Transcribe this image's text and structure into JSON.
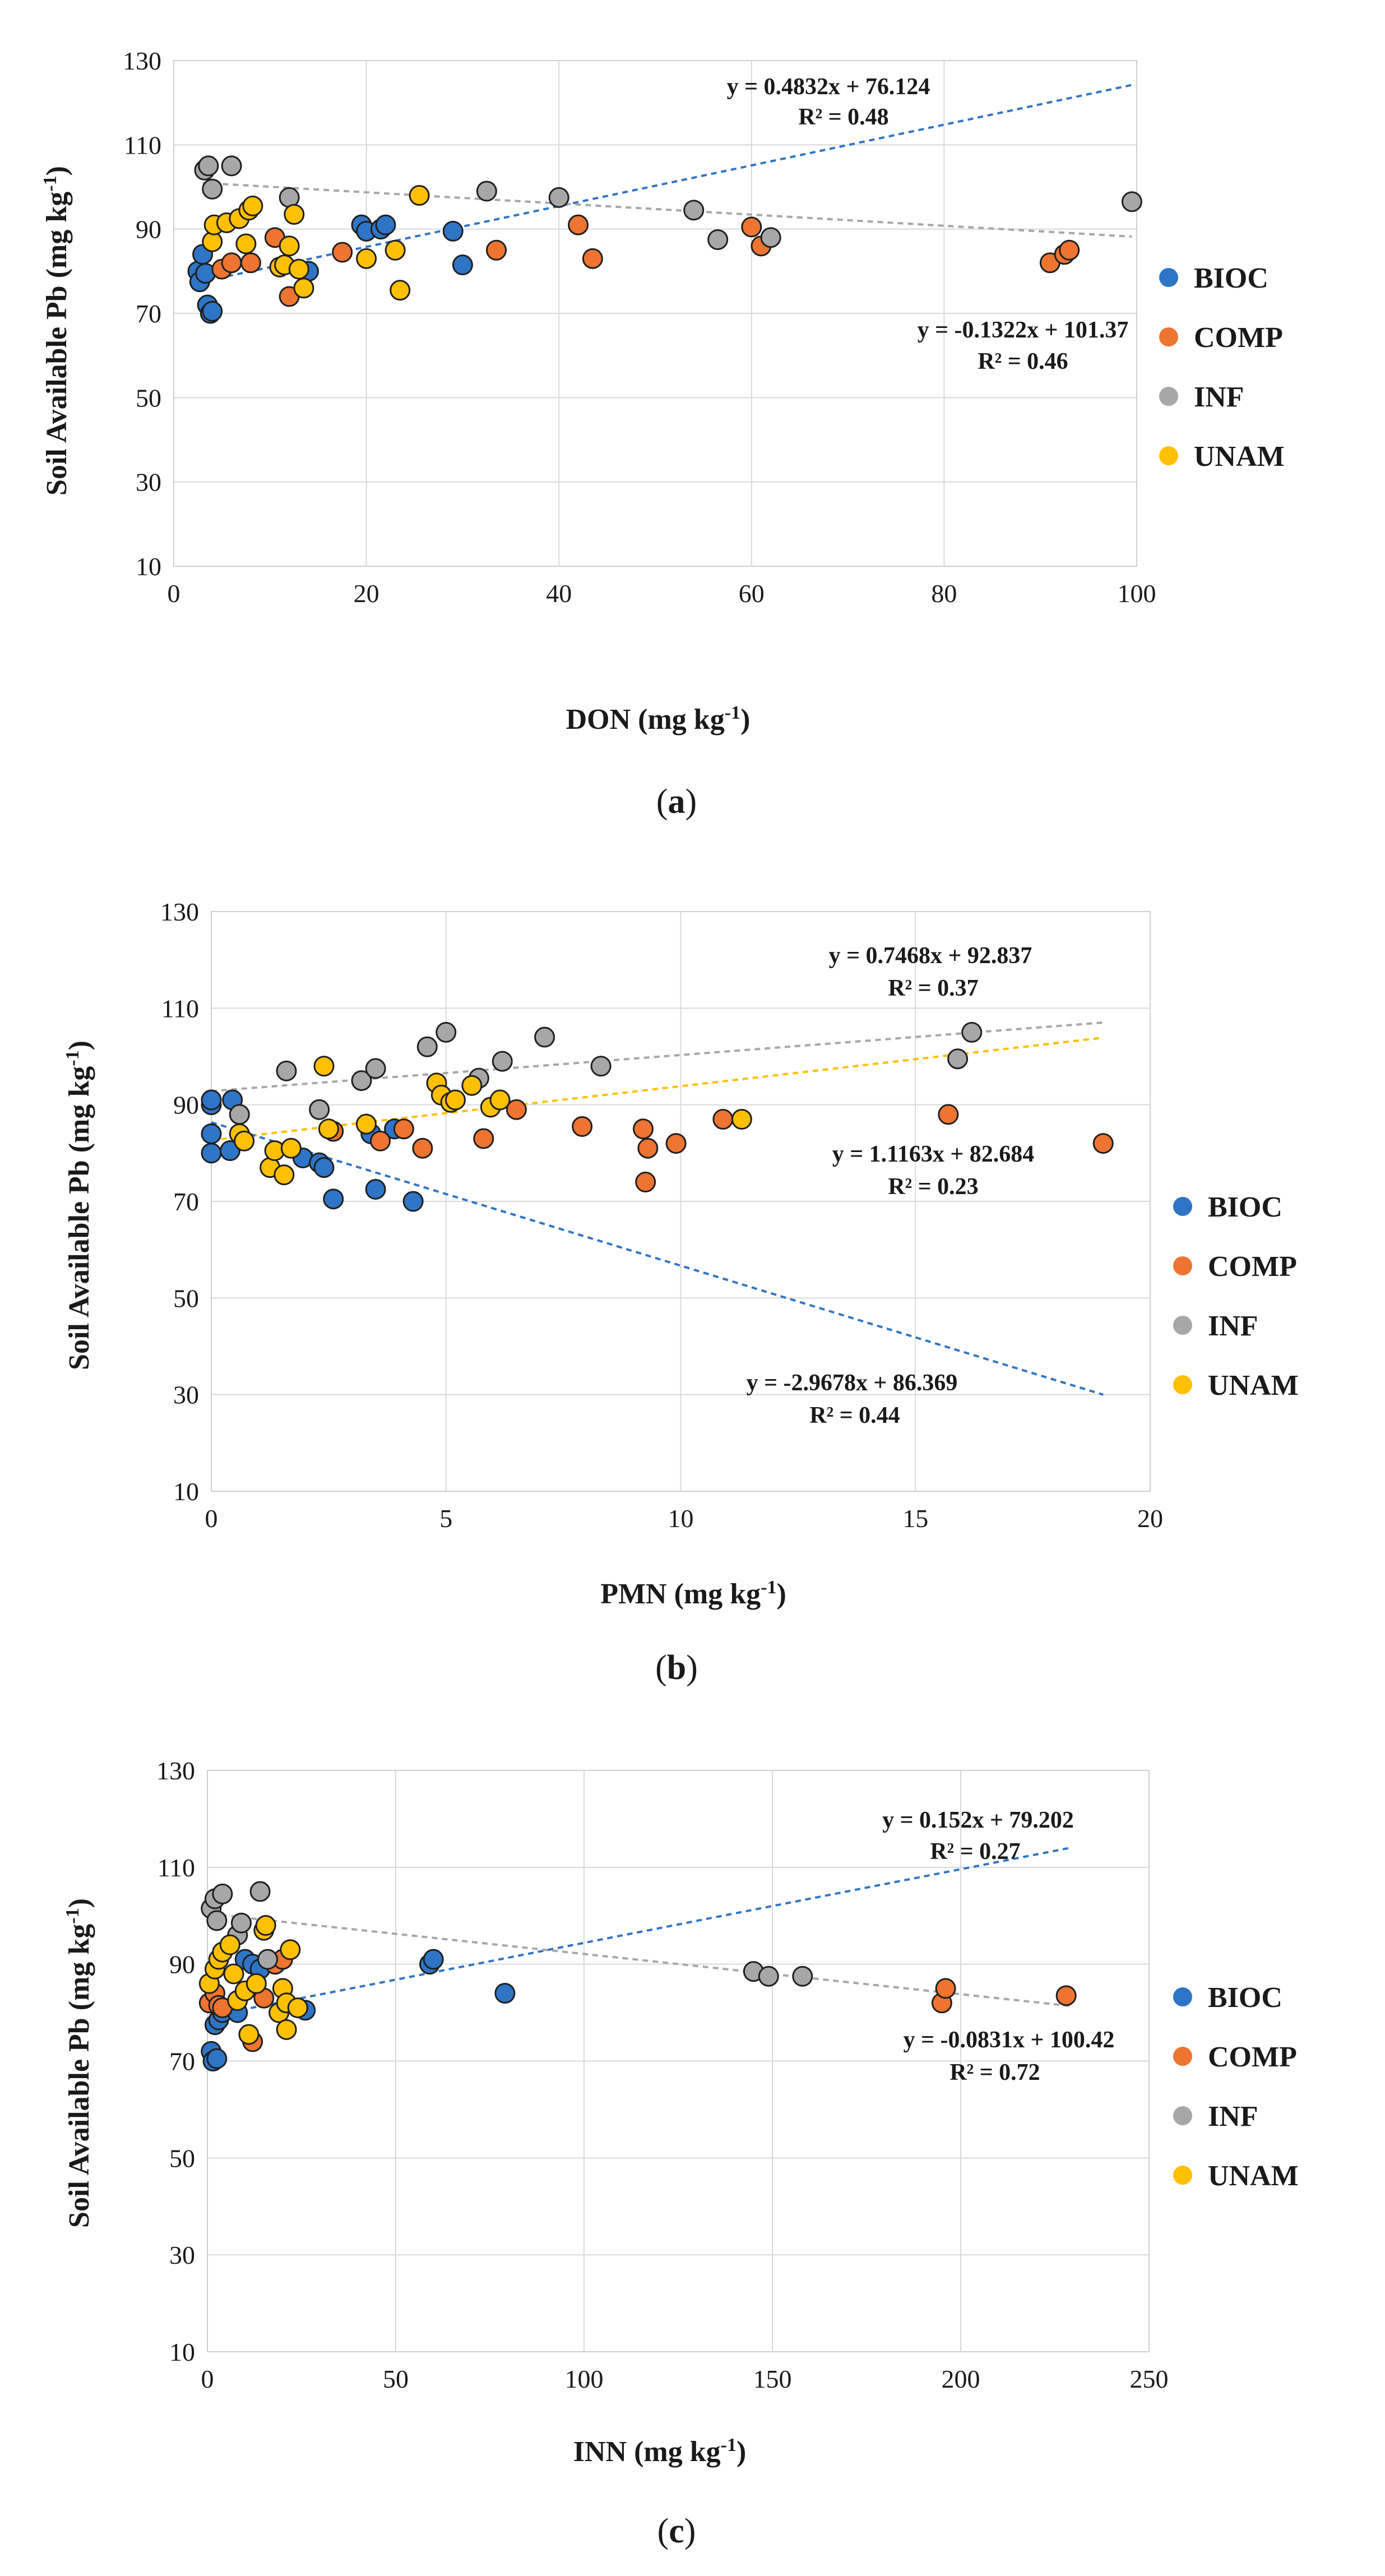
{
  "series_colors": {
    "BIOC": "#2e75c6",
    "COMP": "#ee7431",
    "INF": "#a7a7a7",
    "UNAM": "#ffc000"
  },
  "chart_data": [
    {
      "type": "scatter",
      "caption_label": "a",
      "title": "",
      "xlabel": "DON",
      "xlabel_unit": "(mg kg",
      "xlabel_sup": "-1",
      "ylabel": "Soil Available Pb",
      "ylabel_unit": "(mg kg",
      "ylabel_sup": "-1",
      "xlim": [
        0,
        100
      ],
      "ylim": [
        10,
        130
      ],
      "xticks": [
        0,
        20,
        40,
        60,
        80,
        100
      ],
      "yticks": [
        10,
        30,
        50,
        70,
        90,
        110,
        130
      ],
      "grid": true,
      "legend": [
        "BIOC",
        "COMP",
        "INF",
        "UNAM"
      ],
      "legend_position": "right",
      "series": [
        {
          "name": "BIOC",
          "points": [
            [
              2.5,
              80
            ],
            [
              2.7,
              77.5
            ],
            [
              3,
              84
            ],
            [
              3.3,
              79.5
            ],
            [
              3.5,
              72
            ],
            [
              3.8,
              70
            ],
            [
              4,
              70.5
            ],
            [
              14,
              80
            ],
            [
              19.5,
              91
            ],
            [
              20,
              89.5
            ],
            [
              21.5,
              90
            ],
            [
              22,
              91
            ],
            [
              29,
              89.5
            ],
            [
              30,
              81.5
            ]
          ]
        },
        {
          "name": "COMP",
          "points": [
            [
              5,
              80.5
            ],
            [
              6,
              82
            ],
            [
              8,
              82
            ],
            [
              10.5,
              88
            ],
            [
              12,
              74
            ],
            [
              17.5,
              84.5
            ],
            [
              33.5,
              85
            ],
            [
              42,
              91
            ],
            [
              43.5,
              83
            ],
            [
              60,
              90.5
            ],
            [
              61,
              86
            ],
            [
              91,
              82
            ],
            [
              92.5,
              84
            ],
            [
              93,
              85
            ]
          ]
        },
        {
          "name": "INF",
          "points": [
            [
              3.2,
              104
            ],
            [
              3.6,
              105
            ],
            [
              4,
              99.5
            ],
            [
              6,
              105
            ],
            [
              12,
              97.5
            ],
            [
              32.5,
              99
            ],
            [
              40,
              97.5
            ],
            [
              54,
              94.5
            ],
            [
              56.5,
              87.5
            ],
            [
              62,
              88
            ],
            [
              99.5,
              96.5
            ]
          ]
        },
        {
          "name": "UNAM",
          "points": [
            [
              4,
              87
            ],
            [
              4.2,
              91
            ],
            [
              5.5,
              91.5
            ],
            [
              6.8,
              92.5
            ],
            [
              7.5,
              86.5
            ],
            [
              7.8,
              94.5
            ],
            [
              8.2,
              95.5
            ],
            [
              11,
              81
            ],
            [
              11.5,
              81.5
            ],
            [
              12,
              86
            ],
            [
              12.5,
              93.5
            ],
            [
              13,
              80.5
            ],
            [
              13.5,
              76
            ],
            [
              20,
              83
            ],
            [
              23,
              85
            ],
            [
              23.5,
              75.5
            ],
            [
              25.5,
              98
            ]
          ]
        }
      ],
      "trendlines": [
        {
          "series": "BIOC",
          "x_range": [
            2.5,
            99.5
          ],
          "slope": 0.4832,
          "intercept": 76.124,
          "equation": "y = 0.4832x + 76.124",
          "r2": "R² = 0.48"
        },
        {
          "series": "INF",
          "x_range": [
            3,
            99.5
          ],
          "slope": -0.1322,
          "intercept": 101.37,
          "equation": "y = -0.1322x + 101.37",
          "r2": "R² = 0.46"
        }
      ]
    },
    {
      "type": "scatter",
      "caption_label": "b",
      "title": "",
      "xlabel": "PMN",
      "xlabel_unit": "(mg kg",
      "xlabel_sup": "-1",
      "ylabel": "Soil Available Pb",
      "ylabel_unit": "(mg kg",
      "ylabel_sup": "-1",
      "xlim": [
        0,
        20
      ],
      "ylim": [
        10,
        130
      ],
      "xticks": [
        0,
        5,
        10,
        15,
        20
      ],
      "yticks": [
        10,
        30,
        50,
        70,
        90,
        110,
        130
      ],
      "grid": true,
      "legend": [
        "BIOC",
        "COMP",
        "INF",
        "UNAM"
      ],
      "legend_position": "right",
      "series": [
        {
          "name": "BIOC",
          "points": [
            [
              0,
              84
            ],
            [
              0,
              90
            ],
            [
              0,
              91
            ],
            [
              0,
              80
            ],
            [
              0.45,
              91
            ],
            [
              0.4,
              80.5
            ],
            [
              1.95,
              79
            ],
            [
              2.3,
              78
            ],
            [
              2.4,
              77
            ],
            [
              2.6,
              70.5
            ],
            [
              3.5,
              72.5
            ],
            [
              3.4,
              84
            ],
            [
              3.9,
              85
            ],
            [
              4.3,
              70
            ]
          ]
        },
        {
          "name": "COMP",
          "points": [
            [
              2.6,
              84.5
            ],
            [
              3.6,
              82.5
            ],
            [
              4.1,
              85
            ],
            [
              4.5,
              81
            ],
            [
              5.8,
              83
            ],
            [
              6.5,
              89
            ],
            [
              7.9,
              85.5
            ],
            [
              9.2,
              85
            ],
            [
              9.25,
              74
            ],
            [
              9.3,
              81
            ],
            [
              9.9,
              82
            ],
            [
              10.9,
              87
            ],
            [
              15.7,
              88
            ],
            [
              19,
              82
            ]
          ]
        },
        {
          "name": "INF",
          "points": [
            [
              0.6,
              88
            ],
            [
              1.6,
              97
            ],
            [
              2.3,
              89
            ],
            [
              3.2,
              95
            ],
            [
              3.5,
              97.5
            ],
            [
              4.6,
              102
            ],
            [
              5,
              105
            ],
            [
              5.7,
              95.5
            ],
            [
              6.2,
              99
            ],
            [
              7.1,
              104
            ],
            [
              8.3,
              98
            ],
            [
              15.9,
              99.5
            ],
            [
              16.2,
              105
            ]
          ]
        },
        {
          "name": "UNAM",
          "points": [
            [
              0.6,
              84
            ],
            [
              0.7,
              82.5
            ],
            [
              1.25,
              77
            ],
            [
              1.35,
              80.5
            ],
            [
              1.55,
              75.5
            ],
            [
              1.7,
              81
            ],
            [
              2.4,
              98
            ],
            [
              2.5,
              85
            ],
            [
              3.3,
              86
            ],
            [
              4.8,
              94.5
            ],
            [
              4.9,
              92
            ],
            [
              5.1,
              90.5
            ],
            [
              5.2,
              91
            ],
            [
              5.55,
              94
            ],
            [
              5.95,
              89.5
            ],
            [
              6.15,
              91
            ],
            [
              11.3,
              87
            ]
          ]
        }
      ],
      "trendlines": [
        {
          "series": "INF",
          "x_range": [
            0,
            19
          ],
          "slope": 0.7468,
          "intercept": 92.837,
          "equation": "y = 0.7468x + 92.837",
          "r2": "R² = 0.37"
        },
        {
          "series": "UNAM",
          "x_range": [
            0,
            19
          ],
          "slope": 1.1163,
          "intercept": 82.684,
          "equation": "y = 1.1163x + 82.684",
          "r2": "R² = 0.23"
        },
        {
          "series": "BIOC",
          "x_range": [
            0,
            19
          ],
          "slope": -2.9678,
          "intercept": 86.369,
          "equation": "y = -2.9678x + 86.369",
          "r2": "R² = 0.44"
        }
      ]
    },
    {
      "type": "scatter",
      "caption_label": "c",
      "title": "",
      "xlabel": "INN",
      "xlabel_unit": "(mg kg",
      "xlabel_sup": "-1",
      "ylabel": "Soil Available Pb",
      "ylabel_unit": "(mg kg",
      "ylabel_sup": "-1",
      "xlim": [
        0,
        250
      ],
      "ylim": [
        10,
        130
      ],
      "xticks": [
        0,
        50,
        100,
        150,
        200,
        250
      ],
      "yticks": [
        10,
        30,
        50,
        70,
        90,
        110,
        130
      ],
      "grid": true,
      "legend": [
        "BIOC",
        "COMP",
        "INF",
        "UNAM"
      ],
      "legend_position": "right",
      "series": [
        {
          "name": "BIOC",
          "points": [
            [
              1,
              72
            ],
            [
              1.5,
              70
            ],
            [
              2,
              77.5
            ],
            [
              2.5,
              70.5
            ],
            [
              3,
              78.5
            ],
            [
              4,
              80
            ],
            [
              8,
              80
            ],
            [
              10,
              91
            ],
            [
              12,
              90
            ],
            [
              14,
              89
            ],
            [
              18,
              90
            ],
            [
              26,
              80.5
            ],
            [
              59,
              90
            ],
            [
              60,
              91
            ],
            [
              79,
              84
            ]
          ]
        },
        {
          "name": "COMP",
          "points": [
            [
              0.5,
              82
            ],
            [
              2,
              84
            ],
            [
              3,
              81.5
            ],
            [
              4,
              81
            ],
            [
              12,
              74
            ],
            [
              15,
              83
            ],
            [
              18,
              90
            ],
            [
              20,
              91
            ],
            [
              195,
              82
            ],
            [
              196,
              85
            ],
            [
              228,
              83.5
            ]
          ]
        },
        {
          "name": "INF",
          "points": [
            [
              1,
              101.5
            ],
            [
              2,
              103.5
            ],
            [
              2.5,
              99
            ],
            [
              4,
              104.5
            ],
            [
              8,
              96
            ],
            [
              9,
              98.5
            ],
            [
              14,
              105
            ],
            [
              16,
              91
            ],
            [
              145,
              88.5
            ],
            [
              149,
              87.5
            ],
            [
              158,
              87.5
            ]
          ]
        },
        {
          "name": "UNAM",
          "points": [
            [
              0.5,
              86
            ],
            [
              2,
              89
            ],
            [
              3,
              91
            ],
            [
              4,
              92.5
            ],
            [
              6,
              94
            ],
            [
              7,
              88
            ],
            [
              8,
              82.5
            ],
            [
              10,
              84.5
            ],
            [
              11,
              75.5
            ],
            [
              13,
              86
            ],
            [
              15,
              97
            ],
            [
              15.5,
              98
            ],
            [
              19,
              80
            ],
            [
              20,
              85
            ],
            [
              21,
              76.5
            ],
            [
              21,
              82
            ],
            [
              22,
              93
            ],
            [
              24,
              81
            ]
          ]
        }
      ],
      "trendlines": [
        {
          "series": "BIOC",
          "x_range": [
            1,
            229
          ],
          "slope": 0.152,
          "intercept": 79.202,
          "equation": "y = 0.152x + 79.202",
          "r2": "R² = 0.27"
        },
        {
          "series": "INF",
          "x_range": [
            1,
            229
          ],
          "slope": -0.0831,
          "intercept": 100.42,
          "equation": "y = -0.0831x + 100.42",
          "r2": "R² = 0.72"
        }
      ]
    }
  ]
}
